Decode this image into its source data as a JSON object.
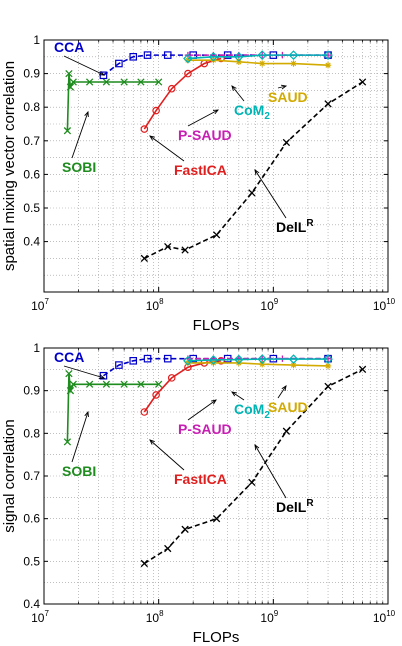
{
  "colors": {
    "CCA": "#0000c8",
    "SOBI": "#1e8c1e",
    "FastICA": "#e01e1e",
    "P-SAUD": "#c81eb4",
    "SAUD": "#d2aa00",
    "CoM2": "#00b4b4",
    "DelLR": "#000000",
    "grid": "#9a9a9a"
  },
  "chart_data": [
    {
      "type": "line",
      "xscale": "log",
      "xlim": [
        10000000,
        10000000000
      ],
      "ylim": [
        0.25,
        1.0
      ],
      "yticks": [
        0.4,
        0.5,
        0.6,
        0.7,
        0.8,
        0.9,
        1
      ],
      "ytick_labels": [
        "0.4",
        "0.5",
        "0.6",
        "0.7",
        "0.8",
        "0.9",
        "1"
      ],
      "xtick_labels": [
        {
          "base": "10",
          "exp": "7"
        },
        {
          "base": "10",
          "exp": "8"
        },
        {
          "base": "10",
          "exp": "9"
        },
        {
          "base": "10",
          "exp": "10"
        }
      ],
      "xlabel": "FLOPs",
      "ylabel": "spatial mixing vector correlation",
      "grid": true,
      "series": [
        {
          "name": "SOBI",
          "marker": "x",
          "style": "solid",
          "x": [
            16000000,
            16500000,
            17000000,
            18000000,
            25000000,
            35000000,
            50000000,
            70000000,
            100000000
          ],
          "y": [
            0.73,
            0.9,
            0.86,
            0.875,
            0.875,
            0.875,
            0.875,
            0.875,
            0.875
          ]
        },
        {
          "name": "CCA",
          "marker": "square",
          "style": "dashed",
          "x": [
            33000000,
            45000000,
            60000000,
            80000000,
            120000000,
            200000000,
            400000000,
            1000000000,
            3000000000
          ],
          "y": [
            0.895,
            0.93,
            0.95,
            0.955,
            0.955,
            0.955,
            0.955,
            0.955,
            0.955
          ]
        },
        {
          "name": "FastICA",
          "marker": "circle",
          "style": "solid",
          "x": [
            75000000,
            95000000,
            130000000,
            180000000,
            250000000,
            350000000
          ],
          "y": [
            0.735,
            0.79,
            0.855,
            0.9,
            0.93,
            0.945
          ]
        },
        {
          "name": "P-SAUD",
          "marker": "plus",
          "style": "dashed",
          "x": [
            180000000,
            300000000,
            500000000,
            800000000,
            1200000000,
            3000000000
          ],
          "y": [
            0.955,
            0.955,
            0.955,
            0.955,
            0.955,
            0.955
          ]
        },
        {
          "name": "SAUD",
          "marker": "star",
          "style": "solid",
          "x": [
            180000000,
            300000000,
            500000000,
            800000000,
            1500000000,
            3000000000
          ],
          "y": [
            0.94,
            0.94,
            0.935,
            0.93,
            0.93,
            0.925
          ]
        },
        {
          "name": "CoM2",
          "marker": "diamond",
          "style": "solid",
          "x": [
            180000000,
            300000000,
            500000000,
            800000000,
            1500000000,
            3000000000
          ],
          "y": [
            0.945,
            0.95,
            0.95,
            0.955,
            0.955,
            0.955
          ]
        },
        {
          "name": "DelLR",
          "marker": "x",
          "style": "dashed",
          "x": [
            75000000,
            120000000,
            170000000,
            320000000,
            650000000,
            1300000000,
            3000000000,
            6000000000
          ],
          "y": [
            0.35,
            0.385,
            0.375,
            0.42,
            0.545,
            0.695,
            0.81,
            0.875
          ]
        }
      ],
      "annotations": [
        {
          "series": "CCA",
          "text": "CCA"
        },
        {
          "series": "SOBI",
          "text": "SOBI"
        },
        {
          "series": "FastICA",
          "text": "FastICA"
        },
        {
          "series": "P-SAUD",
          "text": "P-SAUD"
        },
        {
          "series": "CoM2",
          "text": "CoM",
          "sub": "2"
        },
        {
          "series": "SAUD",
          "text": "SAUD"
        },
        {
          "series": "DelLR",
          "text": "DelL",
          "sup": "R"
        }
      ]
    },
    {
      "type": "line",
      "xscale": "log",
      "xlim": [
        10000000,
        10000000000
      ],
      "ylim": [
        0.4,
        1.0
      ],
      "yticks": [
        0.4,
        0.5,
        0.6,
        0.7,
        0.8,
        0.9,
        1
      ],
      "ytick_labels": [
        "0.4",
        "0.5",
        "0.6",
        "0.7",
        "0.8",
        "0.9",
        "1"
      ],
      "xtick_labels": [
        {
          "base": "10",
          "exp": "7"
        },
        {
          "base": "10",
          "exp": "8"
        },
        {
          "base": "10",
          "exp": "9"
        },
        {
          "base": "10",
          "exp": "10"
        }
      ],
      "xlabel": "FLOPs",
      "ylabel": "signal correlation",
      "grid": true,
      "series": [
        {
          "name": "SOBI",
          "marker": "x",
          "style": "solid",
          "x": [
            16000000,
            16500000,
            17000000,
            18000000,
            25000000,
            35000000,
            50000000,
            70000000,
            100000000
          ],
          "y": [
            0.78,
            0.94,
            0.9,
            0.915,
            0.915,
            0.915,
            0.915,
            0.915,
            0.915
          ]
        },
        {
          "name": "CCA",
          "marker": "square",
          "style": "dashed",
          "x": [
            33000000,
            45000000,
            60000000,
            80000000,
            120000000,
            200000000,
            400000000,
            1000000000,
            3000000000
          ],
          "y": [
            0.935,
            0.96,
            0.97,
            0.975,
            0.975,
            0.975,
            0.975,
            0.975,
            0.975
          ]
        },
        {
          "name": "FastICA",
          "marker": "circle",
          "style": "solid",
          "x": [
            75000000,
            95000000,
            130000000,
            180000000,
            250000000,
            350000000
          ],
          "y": [
            0.85,
            0.89,
            0.93,
            0.955,
            0.965,
            0.97
          ]
        },
        {
          "name": "P-SAUD",
          "marker": "plus",
          "style": "dashed",
          "x": [
            180000000,
            300000000,
            500000000,
            800000000,
            1200000000,
            3000000000
          ],
          "y": [
            0.975,
            0.975,
            0.975,
            0.975,
            0.975,
            0.975
          ]
        },
        {
          "name": "SAUD",
          "marker": "star",
          "style": "solid",
          "x": [
            180000000,
            300000000,
            500000000,
            800000000,
            1500000000,
            3000000000
          ],
          "y": [
            0.965,
            0.965,
            0.965,
            0.962,
            0.96,
            0.958
          ]
        },
        {
          "name": "CoM2",
          "marker": "diamond",
          "style": "solid",
          "x": [
            180000000,
            300000000,
            500000000,
            800000000,
            1500000000,
            3000000000
          ],
          "y": [
            0.97,
            0.972,
            0.973,
            0.974,
            0.974,
            0.974
          ]
        },
        {
          "name": "DelLR",
          "marker": "x",
          "style": "dashed",
          "x": [
            75000000,
            120000000,
            170000000,
            320000000,
            650000000,
            1300000000,
            3000000000,
            6000000000
          ],
          "y": [
            0.495,
            0.53,
            0.575,
            0.6,
            0.685,
            0.805,
            0.91,
            0.95
          ]
        }
      ],
      "annotations": [
        {
          "series": "CCA",
          "text": "CCA"
        },
        {
          "series": "SOBI",
          "text": "SOBI"
        },
        {
          "series": "FastICA",
          "text": "FastICA"
        },
        {
          "series": "P-SAUD",
          "text": "P-SAUD"
        },
        {
          "series": "CoM2",
          "text": "CoM",
          "sub": "2"
        },
        {
          "series": "SAUD",
          "text": "SAUD"
        },
        {
          "series": "DelLR",
          "text": "DelL",
          "sup": "R"
        }
      ]
    }
  ]
}
